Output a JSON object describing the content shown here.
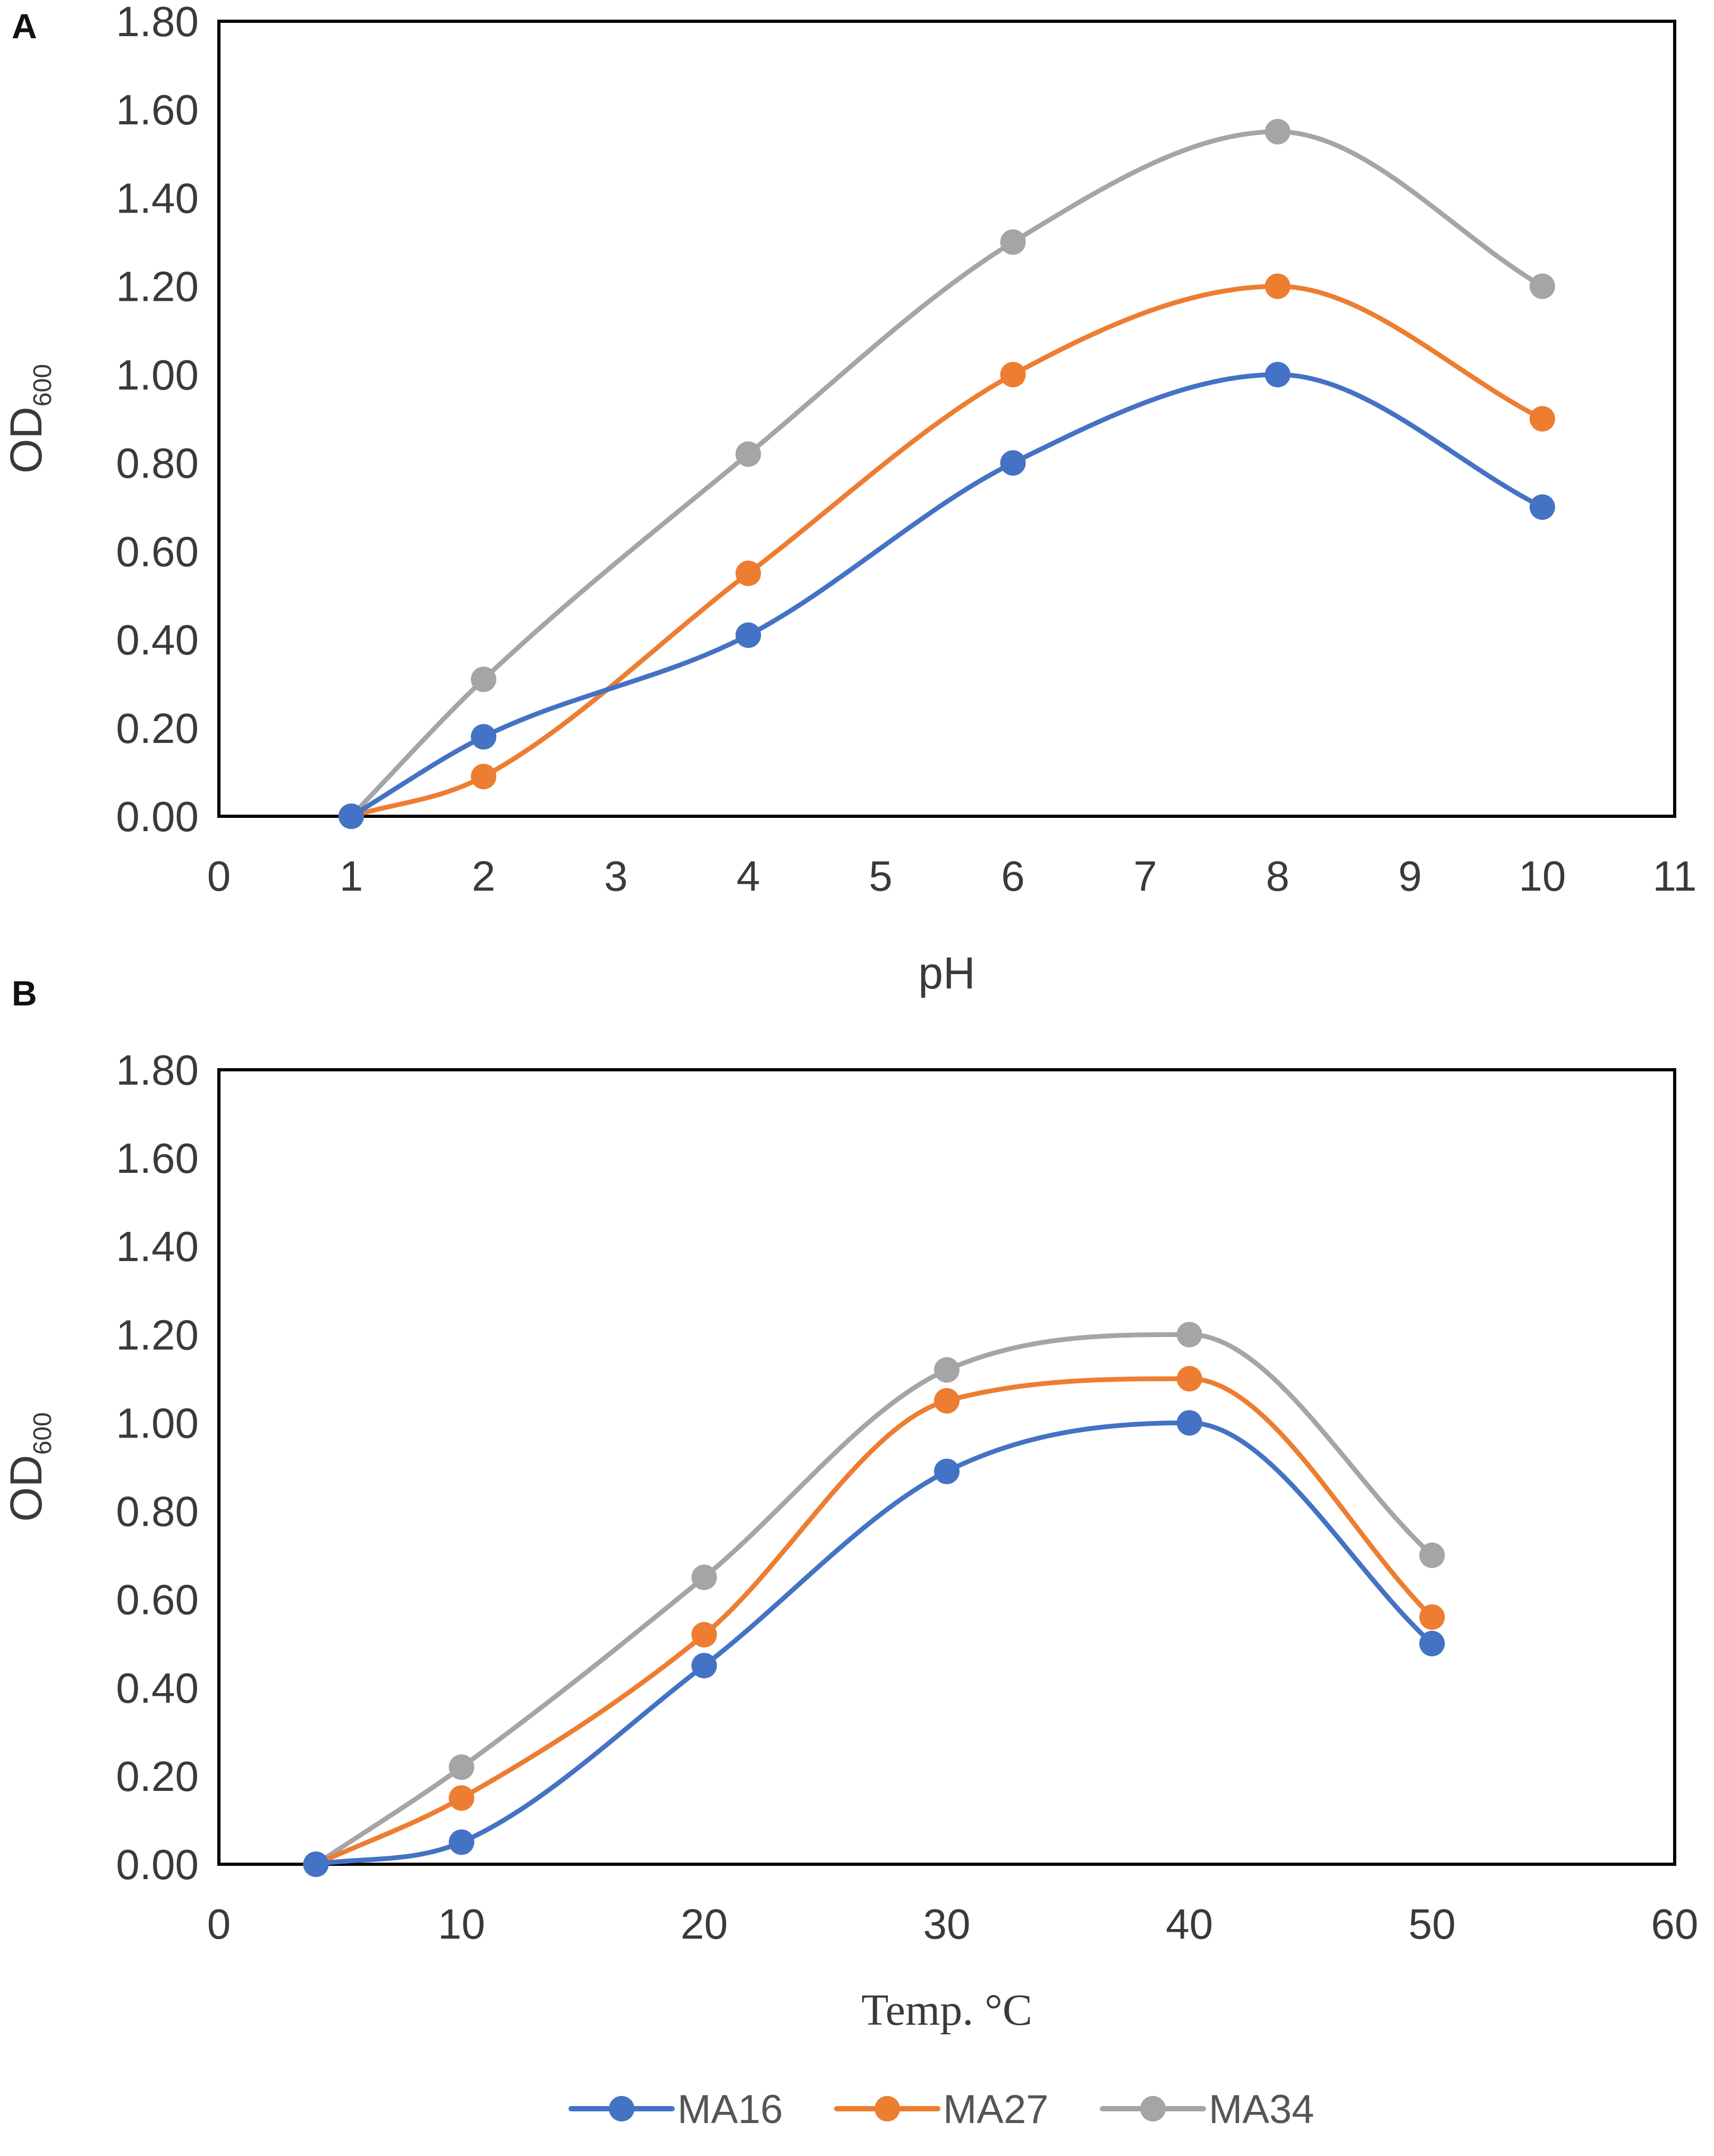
{
  "legend": {
    "items": [
      {
        "name": "MA16",
        "color": "#4472C4"
      },
      {
        "name": "MA27",
        "color": "#ED7D31"
      },
      {
        "name": "MA34",
        "color": "#A5A5A5"
      }
    ]
  },
  "chart_data": [
    {
      "panel": "A",
      "type": "line",
      "smooth": true,
      "xlabel": "pH",
      "ylabel": "OD",
      "ylabel_sub": "600",
      "xlim": [
        0,
        11
      ],
      "ylim": [
        0,
        1.8
      ],
      "x_ticks": [
        "0",
        "1",
        "2",
        "3",
        "4",
        "5",
        "6",
        "7",
        "8",
        "9",
        "10",
        "11"
      ],
      "y_ticks": [
        "0.00",
        "0.20",
        "0.40",
        "0.60",
        "0.80",
        "1.00",
        "1.20",
        "1.40",
        "1.60",
        "1.80"
      ],
      "x": [
        1,
        2,
        4,
        6,
        8,
        10
      ],
      "series": [
        {
          "name": "MA16",
          "values": [
            0,
            0.18,
            0.41,
            0.8,
            1.0,
            0.7
          ]
        },
        {
          "name": "MA27",
          "values": [
            0,
            0.09,
            0.55,
            1.0,
            1.2,
            0.9
          ]
        },
        {
          "name": "MA34",
          "values": [
            0,
            0.31,
            0.82,
            1.3,
            1.55,
            1.2
          ]
        }
      ]
    },
    {
      "panel": "B",
      "type": "line",
      "smooth": true,
      "xlabel": "Temp. °C",
      "ylabel": "OD",
      "ylabel_sub": "600",
      "xlim": [
        0,
        60
      ],
      "ylim": [
        0,
        1.8
      ],
      "x_ticks": [
        "0",
        "10",
        "20",
        "30",
        "40",
        "50",
        "60"
      ],
      "y_ticks": [
        "0.00",
        "0.20",
        "0.40",
        "0.60",
        "0.80",
        "1.00",
        "1.20",
        "1.40",
        "1.60",
        "1.80"
      ],
      "x": [
        4,
        10,
        20,
        30,
        40,
        50
      ],
      "series": [
        {
          "name": "MA16",
          "values": [
            0,
            0.05,
            0.45,
            0.89,
            1.0,
            0.5
          ]
        },
        {
          "name": "MA27",
          "values": [
            0,
            0.15,
            0.52,
            1.05,
            1.1,
            0.56
          ]
        },
        {
          "name": "MA34",
          "values": [
            0,
            0.22,
            0.65,
            1.12,
            1.2,
            0.7
          ]
        }
      ]
    }
  ]
}
